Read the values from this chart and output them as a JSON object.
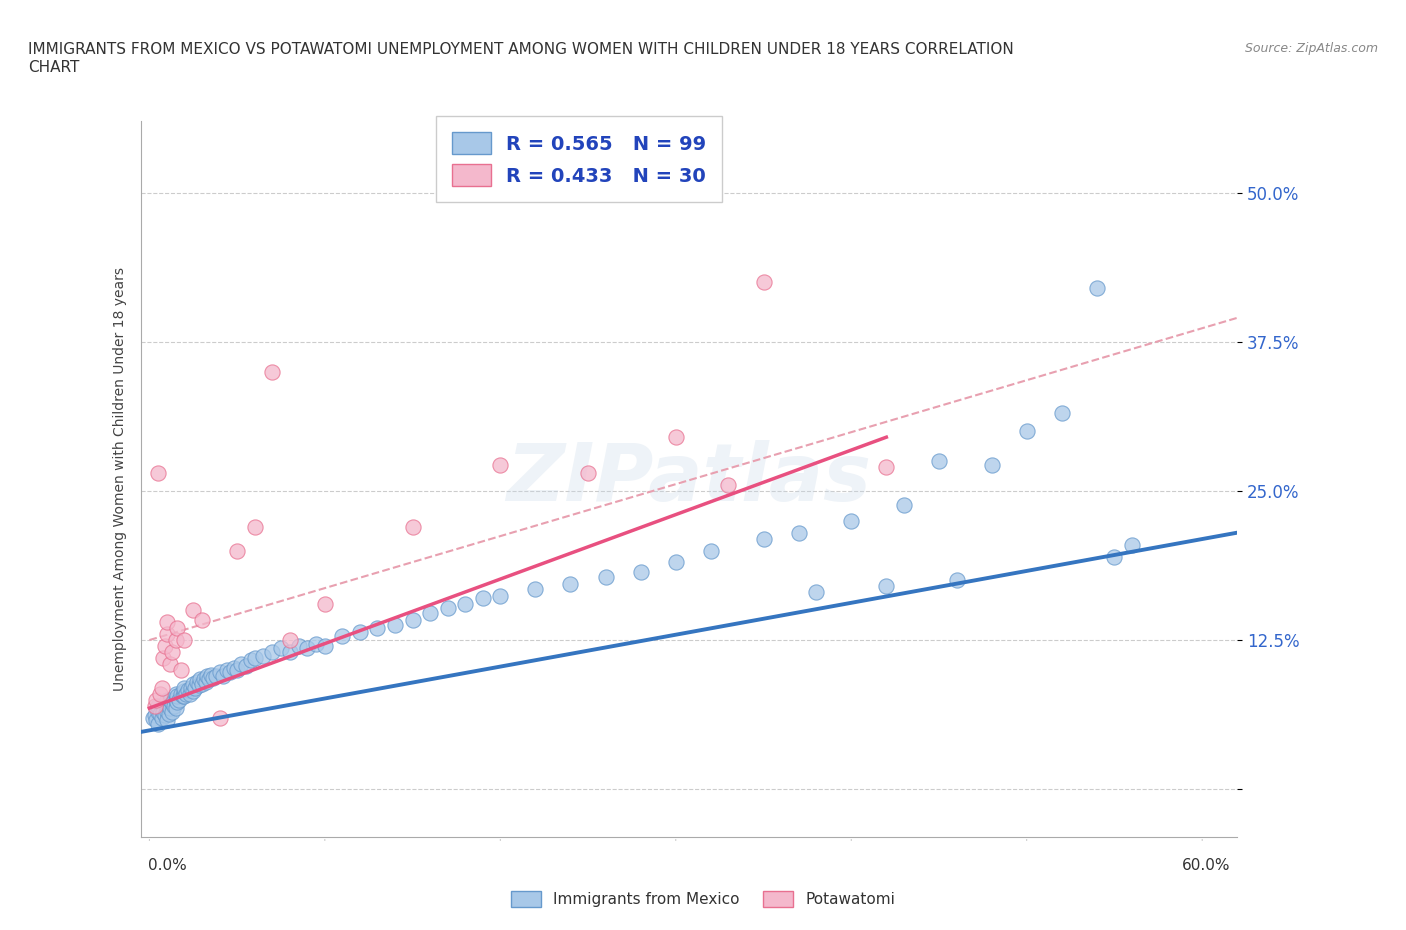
{
  "title_line1": "IMMIGRANTS FROM MEXICO VS POTAWATOMI UNEMPLOYMENT AMONG WOMEN WITH CHILDREN UNDER 18 YEARS CORRELATION",
  "title_line2": "CHART",
  "source": "Source: ZipAtlas.com",
  "xlabel_bottom_left": "0.0%",
  "xlabel_bottom_right": "60.0%",
  "ylabel": "Unemployment Among Women with Children Under 18 years",
  "xlim": [
    -0.005,
    0.62
  ],
  "ylim": [
    -0.04,
    0.56
  ],
  "yticks": [
    0.0,
    0.125,
    0.25,
    0.375,
    0.5
  ],
  "ytick_labels": [
    "",
    "12.5%",
    "25.0%",
    "37.5%",
    "50.0%"
  ],
  "legend_R1": "R = 0.565",
  "legend_N1": "N = 99",
  "legend_R2": "R = 0.433",
  "legend_N2": "N = 30",
  "color_blue": "#a8c8e8",
  "color_blue_edge": "#6699cc",
  "color_pink": "#f4b8cc",
  "color_pink_edge": "#e87090",
  "color_blue_line": "#3575c0",
  "color_pink_line": "#e85080",
  "color_dashed": "#e8a0b0",
  "background_color": "#ffffff",
  "watermark": "ZIPatlas",
  "blue_scatter_x": [
    0.002,
    0.003,
    0.004,
    0.005,
    0.005,
    0.005,
    0.006,
    0.007,
    0.008,
    0.009,
    0.01,
    0.01,
    0.01,
    0.01,
    0.01,
    0.011,
    0.011,
    0.012,
    0.012,
    0.013,
    0.013,
    0.014,
    0.015,
    0.015,
    0.015,
    0.016,
    0.016,
    0.017,
    0.018,
    0.019,
    0.02,
    0.02,
    0.02,
    0.021,
    0.022,
    0.023,
    0.024,
    0.025,
    0.025,
    0.026,
    0.027,
    0.028,
    0.029,
    0.03,
    0.031,
    0.032,
    0.033,
    0.034,
    0.035,
    0.036,
    0.038,
    0.04,
    0.042,
    0.044,
    0.046,
    0.048,
    0.05,
    0.052,
    0.055,
    0.058,
    0.06,
    0.065,
    0.07,
    0.075,
    0.08,
    0.085,
    0.09,
    0.095,
    0.1,
    0.11,
    0.12,
    0.13,
    0.14,
    0.15,
    0.16,
    0.17,
    0.18,
    0.19,
    0.2,
    0.22,
    0.24,
    0.26,
    0.28,
    0.3,
    0.32,
    0.35,
    0.37,
    0.4,
    0.43,
    0.45,
    0.48,
    0.5,
    0.52,
    0.54,
    0.55,
    0.56,
    0.38,
    0.42,
    0.46
  ],
  "blue_scatter_y": [
    0.06,
    0.062,
    0.058,
    0.065,
    0.055,
    0.07,
    0.063,
    0.06,
    0.065,
    0.062,
    0.068,
    0.072,
    0.065,
    0.058,
    0.075,
    0.07,
    0.063,
    0.068,
    0.075,
    0.072,
    0.065,
    0.07,
    0.075,
    0.068,
    0.08,
    0.073,
    0.078,
    0.075,
    0.08,
    0.078,
    0.082,
    0.078,
    0.085,
    0.08,
    0.083,
    0.08,
    0.085,
    0.082,
    0.088,
    0.085,
    0.09,
    0.087,
    0.092,
    0.088,
    0.092,
    0.09,
    0.095,
    0.092,
    0.096,
    0.093,
    0.095,
    0.098,
    0.095,
    0.1,
    0.098,
    0.102,
    0.1,
    0.105,
    0.103,
    0.108,
    0.11,
    0.112,
    0.115,
    0.118,
    0.115,
    0.12,
    0.118,
    0.122,
    0.12,
    0.128,
    0.132,
    0.135,
    0.138,
    0.142,
    0.148,
    0.152,
    0.155,
    0.16,
    0.162,
    0.168,
    0.172,
    0.178,
    0.182,
    0.19,
    0.2,
    0.21,
    0.215,
    0.225,
    0.238,
    0.275,
    0.272,
    0.3,
    0.315,
    0.42,
    0.195,
    0.205,
    0.165,
    0.17,
    0.175
  ],
  "pink_scatter_x": [
    0.003,
    0.004,
    0.005,
    0.006,
    0.007,
    0.008,
    0.009,
    0.01,
    0.01,
    0.012,
    0.013,
    0.015,
    0.016,
    0.018,
    0.02,
    0.025,
    0.03,
    0.04,
    0.05,
    0.06,
    0.07,
    0.08,
    0.1,
    0.15,
    0.2,
    0.25,
    0.3,
    0.33,
    0.35,
    0.42
  ],
  "pink_scatter_y": [
    0.07,
    0.075,
    0.265,
    0.08,
    0.085,
    0.11,
    0.12,
    0.13,
    0.14,
    0.105,
    0.115,
    0.125,
    0.135,
    0.1,
    0.125,
    0.15,
    0.142,
    0.06,
    0.2,
    0.22,
    0.35,
    0.125,
    0.155,
    0.22,
    0.272,
    0.265,
    0.295,
    0.255,
    0.425,
    0.27
  ],
  "blue_line_x0": -0.005,
  "blue_line_x1": 0.62,
  "blue_line_y0": 0.048,
  "blue_line_y1": 0.215,
  "pink_line_x0": 0.0,
  "pink_line_x1": 0.42,
  "pink_line_y0": 0.068,
  "pink_line_y1": 0.295,
  "dashed_line_x0": 0.0,
  "dashed_line_x1": 0.62,
  "dashed_line_y0": 0.125,
  "dashed_line_y1": 0.395,
  "legend1_label": "R = 0.565   N = 99",
  "legend2_label": "R = 0.433   N = 30",
  "bottom_legend1": "Immigrants from Mexico",
  "bottom_legend2": "Potawatomi"
}
